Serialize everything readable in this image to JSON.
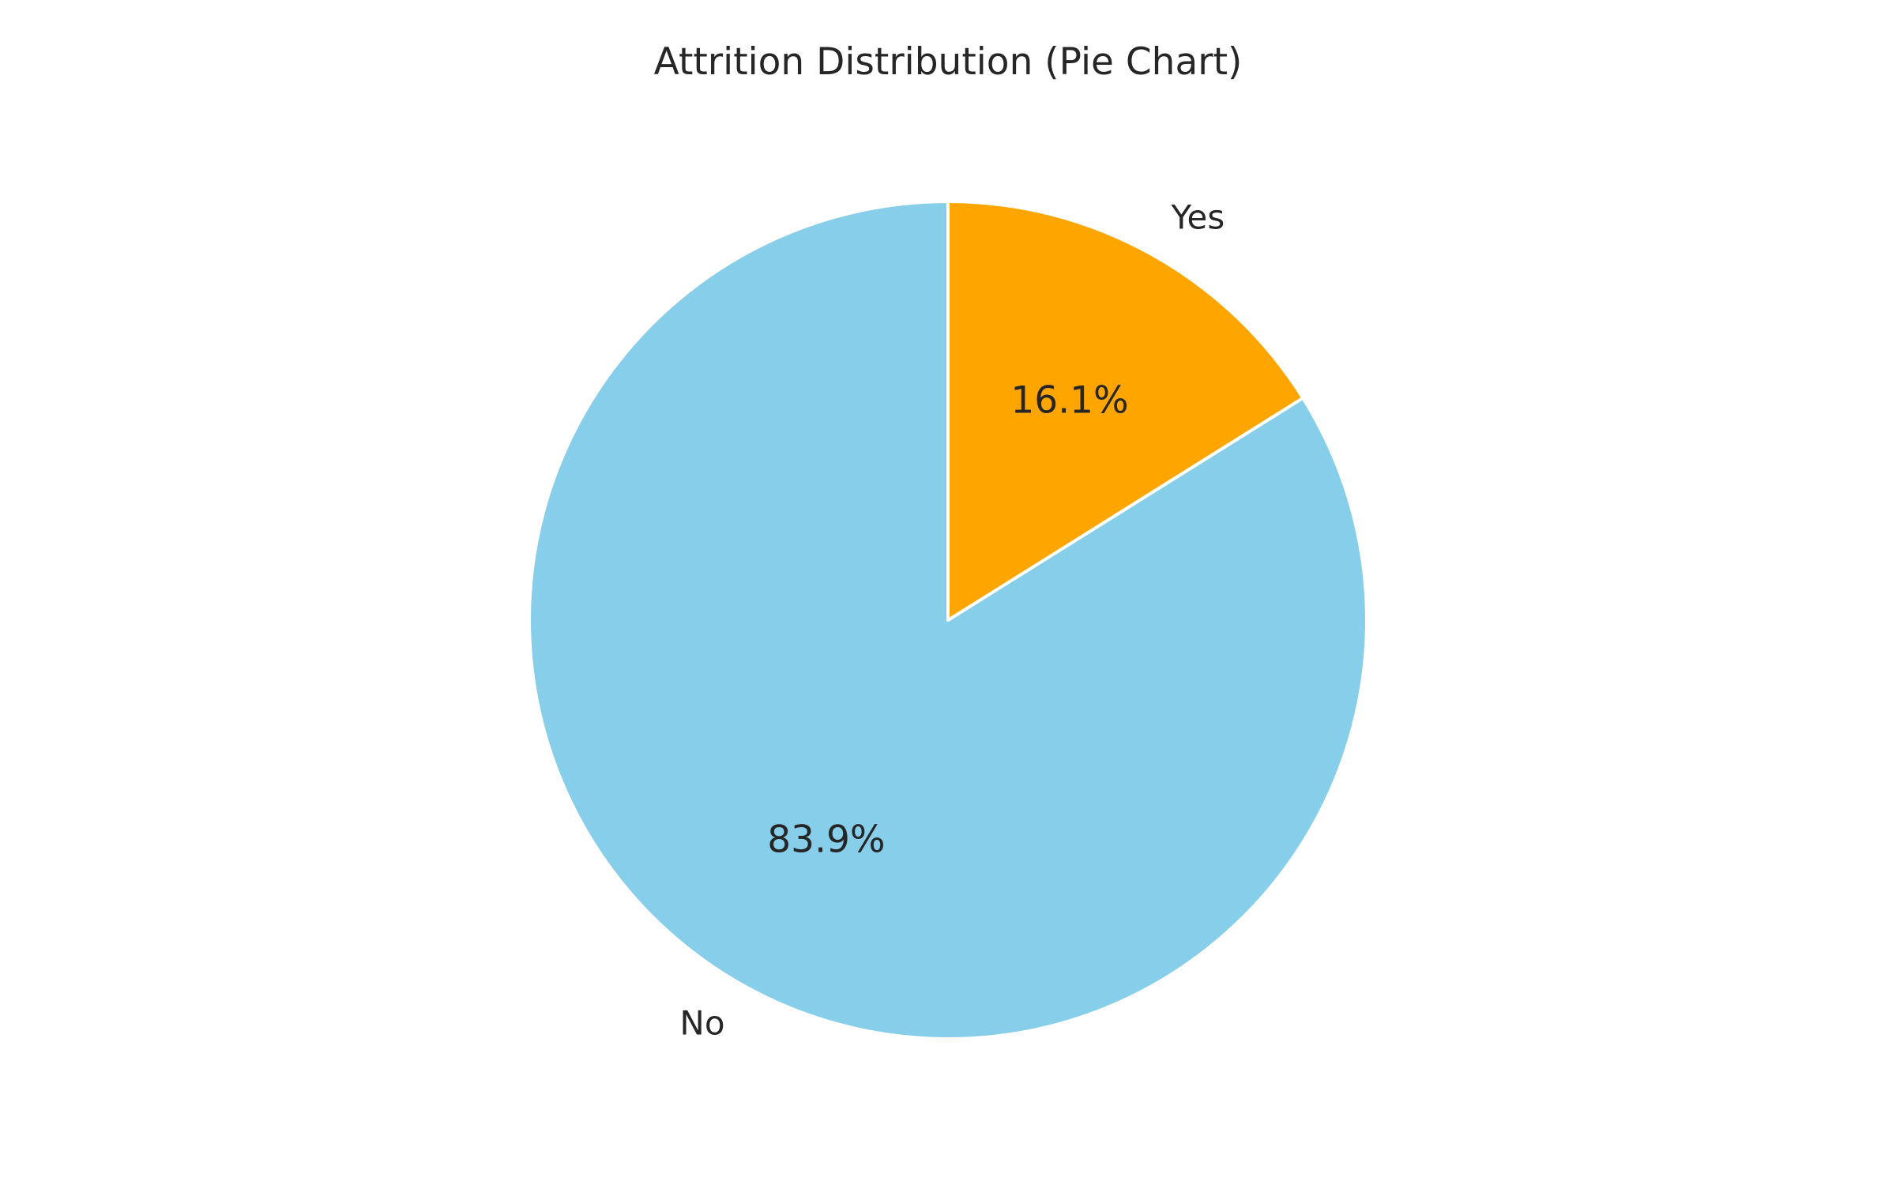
{
  "chart_data": {
    "type": "pie",
    "title": "Attrition Distribution (Pie Chart)",
    "slices": [
      {
        "label": "No",
        "value": 83.9,
        "pct_label": "83.9%",
        "color": "#87CEEB"
      },
      {
        "label": "Yes",
        "value": 16.1,
        "pct_label": "16.1%",
        "color": "#FFA500"
      }
    ],
    "start_angle": 90,
    "direction": "counterclockwise",
    "legend": "none",
    "slice_edge_color": "#ffffff"
  }
}
